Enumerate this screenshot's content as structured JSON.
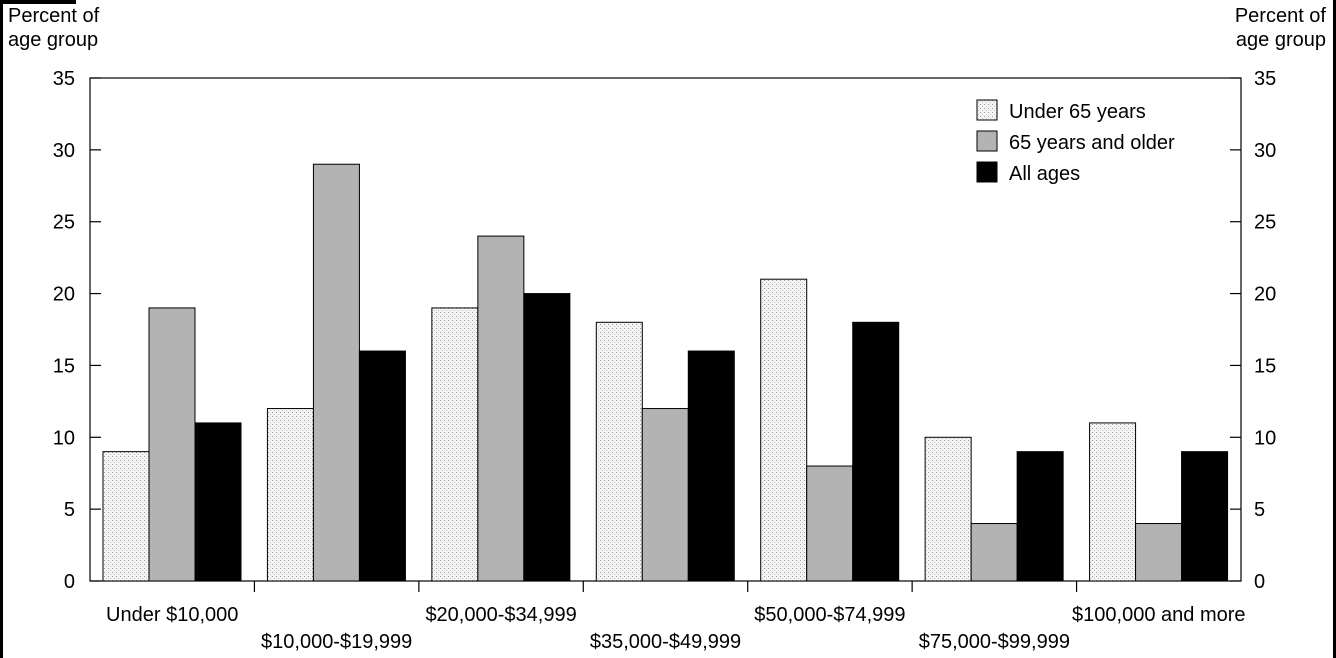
{
  "chart_data": {
    "type": "bar",
    "title": "",
    "ylabel_left": [
      "Percent of",
      "age group"
    ],
    "ylabel_right": [
      "Percent of",
      "age group"
    ],
    "ylim": [
      0,
      35
    ],
    "yticks": [
      0,
      5,
      10,
      15,
      20,
      25,
      30,
      35
    ],
    "grid": false,
    "legend_position": "top-right",
    "categories": [
      "Under $10,000",
      "$10,000-$19,999",
      "$20,000-$34,999",
      "$35,000-$49,999",
      "$50,000-$74,999",
      "$75,000-$99,999",
      "$100,000 and more"
    ],
    "series": [
      {
        "name": "Under 65 years",
        "color": "#f2f2f2",
        "pattern": "dotted",
        "values": [
          9,
          12,
          19,
          18,
          21,
          10,
          11
        ]
      },
      {
        "name": "65 years and older",
        "color": "#b3b3b3",
        "values": [
          19,
          29,
          24,
          12,
          8,
          4,
          4
        ]
      },
      {
        "name": "All ages",
        "color": "#000000",
        "values": [
          11,
          16,
          20,
          16,
          18,
          9,
          9
        ]
      }
    ]
  }
}
